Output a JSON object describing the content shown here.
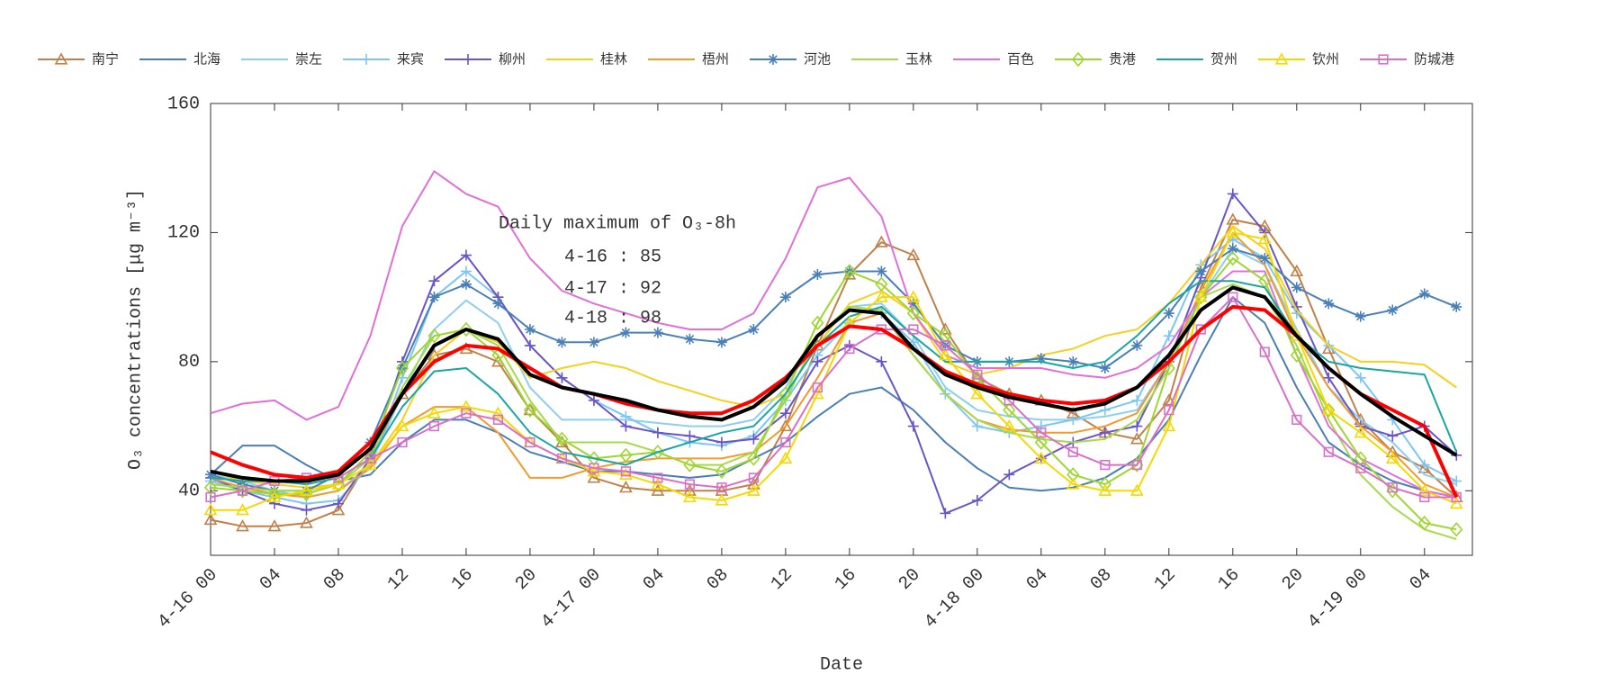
{
  "chart_data": {
    "type": "line",
    "x_label": "Date",
    "y_label": "O₃ concentrations [μg m⁻³]",
    "annotations": [
      "Daily maximum of O₃-8h",
      "4-16 : 85",
      "4-17 : 92",
      "4-18 : 98"
    ],
    "x": [
      0,
      2,
      4,
      6,
      8,
      10,
      12,
      14,
      16,
      18,
      20,
      22,
      24,
      26,
      28,
      30,
      32,
      34,
      36,
      38,
      40,
      42,
      44,
      46,
      48,
      50,
      52,
      54,
      56,
      58,
      60,
      62,
      64,
      66,
      68,
      70,
      72,
      74,
      76,
      78
    ],
    "xlim": [
      0,
      79
    ],
    "xticks": [
      {
        "value": 0,
        "label": "4-16 00"
      },
      {
        "value": 4,
        "label": "04"
      },
      {
        "value": 8,
        "label": "08"
      },
      {
        "value": 12,
        "label": "12"
      },
      {
        "value": 16,
        "label": "16"
      },
      {
        "value": 20,
        "label": "20"
      },
      {
        "value": 24,
        "label": "4-17 00"
      },
      {
        "value": 28,
        "label": "04"
      },
      {
        "value": 32,
        "label": "08"
      },
      {
        "value": 36,
        "label": "12"
      },
      {
        "value": 40,
        "label": "16"
      },
      {
        "value": 44,
        "label": "20"
      },
      {
        "value": 48,
        "label": "4-18 00"
      },
      {
        "value": 52,
        "label": "04"
      },
      {
        "value": 56,
        "label": "08"
      },
      {
        "value": 60,
        "label": "12"
      },
      {
        "value": 64,
        "label": "16"
      },
      {
        "value": 68,
        "label": "20"
      },
      {
        "value": 72,
        "label": "4-19 00"
      },
      {
        "value": 76,
        "label": "04"
      }
    ],
    "ylim": [
      20,
      160
    ],
    "yticks": [
      40,
      80,
      120,
      160
    ],
    "legend": "top",
    "series": [
      {
        "name": "南宁",
        "color": "#c0804a",
        "marker": "triangle",
        "values": [
          31,
          29,
          29,
          30,
          34,
          50,
          70,
          82,
          84,
          80,
          65,
          55,
          44,
          41,
          40,
          40,
          40,
          42,
          60,
          85,
          107,
          117,
          113,
          90,
          75,
          70,
          68,
          64,
          58,
          56,
          68,
          103,
          124,
          122,
          108,
          84,
          62,
          52,
          47,
          38
        ]
      },
      {
        "name": "北海",
        "color": "#4a7fb5",
        "values": [
          45,
          54,
          54,
          48,
          43,
          45,
          55,
          62,
          62,
          58,
          52,
          49,
          46,
          46,
          45,
          44,
          45,
          50,
          55,
          63,
          70,
          72,
          65,
          55,
          47,
          41,
          40,
          41,
          44,
          50,
          62,
          82,
          100,
          92,
          72,
          55,
          48,
          43,
          40,
          38
        ]
      },
      {
        "name": "崇左",
        "color": "#8ccff0",
        "values": [
          45,
          43,
          40,
          38,
          40,
          48,
          70,
          90,
          99,
          92,
          72,
          62,
          62,
          62,
          61,
          60,
          60,
          62,
          72,
          88,
          97,
          98,
          88,
          72,
          65,
          63,
          62,
          62,
          63,
          65,
          80,
          100,
          115,
          110,
          90,
          72,
          62,
          55,
          45,
          42
        ]
      },
      {
        "name": "来宾",
        "color": "#7ec6f2",
        "marker": "plus",
        "values": [
          43,
          40,
          38,
          36,
          37,
          48,
          75,
          100,
          108,
          100,
          85,
          75,
          68,
          63,
          58,
          55,
          54,
          57,
          68,
          82,
          92,
          95,
          86,
          70,
          60,
          58,
          60,
          62,
          65,
          68,
          88,
          110,
          118,
          112,
          95,
          85,
          75,
          62,
          48,
          43
        ]
      },
      {
        "name": "柳州",
        "color": "#6a55c8",
        "marker": "plus",
        "values": [
          44,
          40,
          36,
          34,
          36,
          50,
          80,
          105,
          113,
          100,
          85,
          75,
          68,
          60,
          58,
          57,
          55,
          56,
          64,
          80,
          85,
          80,
          60,
          33,
          37,
          45,
          50,
          55,
          58,
          60,
          80,
          106,
          132,
          120,
          97,
          75,
          60,
          57,
          60,
          51
        ]
      },
      {
        "name": "桂林",
        "color": "#f5d020",
        "values": [
          46,
          43,
          42,
          41,
          42,
          48,
          62,
          82,
          90,
          86,
          75,
          78,
          80,
          78,
          74,
          71,
          68,
          66,
          70,
          85,
          98,
          102,
          95,
          80,
          76,
          78,
          82,
          84,
          88,
          90,
          98,
          110,
          122,
          115,
          96,
          85,
          80,
          80,
          79,
          72
        ]
      },
      {
        "name": "梧州",
        "color": "#f29a2e",
        "values": [
          44,
          41,
          39,
          38,
          40,
          47,
          60,
          66,
          66,
          58,
          44,
          44,
          47,
          49,
          50,
          50,
          50,
          52,
          60,
          75,
          92,
          95,
          82,
          70,
          62,
          59,
          58,
          58,
          60,
          64,
          80,
          102,
          120,
          110,
          88,
          72,
          60,
          52,
          42,
          38
        ]
      },
      {
        "name": "河池",
        "color": "#4a80b8",
        "marker": "star",
        "values": [
          45,
          42,
          40,
          40,
          45,
          55,
          78,
          100,
          104,
          98,
          90,
          86,
          86,
          89,
          89,
          87,
          86,
          90,
          100,
          107,
          108,
          108,
          98,
          85,
          80,
          80,
          81,
          80,
          78,
          85,
          95,
          108,
          115,
          112,
          103,
          98,
          94,
          96,
          101,
          97
        ]
      },
      {
        "name": "玉林",
        "color": "#a8d94a",
        "values": [
          42,
          41,
          40,
          40,
          42,
          50,
          72,
          88,
          90,
          85,
          68,
          55,
          55,
          55,
          52,
          48,
          48,
          52,
          68,
          88,
          97,
          96,
          82,
          70,
          62,
          58,
          56,
          55,
          56,
          62,
          78,
          100,
          104,
          100,
          85,
          62,
          45,
          35,
          28,
          25
        ]
      },
      {
        "name": "百色",
        "color": "#e070d8",
        "values": [
          64,
          67,
          68,
          62,
          66,
          88,
          122,
          139,
          132,
          128,
          112,
          102,
          98,
          95,
          92,
          90,
          90,
          95,
          112,
          134,
          137,
          125,
          95,
          82,
          78,
          78,
          78,
          76,
          75,
          78,
          85,
          100,
          108,
          108,
          82,
          60,
          50,
          45,
          40,
          38
        ]
      },
      {
        "name": "贵港",
        "color": "#9ed630",
        "marker": "diamond",
        "values": [
          41,
          40,
          39,
          39,
          42,
          52,
          78,
          88,
          90,
          82,
          65,
          56,
          50,
          51,
          52,
          48,
          46,
          50,
          70,
          92,
          108,
          104,
          95,
          88,
          75,
          65,
          55,
          45,
          42,
          48,
          78,
          100,
          112,
          105,
          82,
          65,
          50,
          40,
          30,
          28
        ]
      },
      {
        "name": "贺州",
        "color": "#1aa6a0",
        "values": [
          44,
          43,
          43,
          42,
          44,
          50,
          66,
          77,
          78,
          70,
          58,
          52,
          50,
          48,
          52,
          55,
          58,
          60,
          70,
          85,
          94,
          97,
          88,
          80,
          80,
          80,
          80,
          78,
          80,
          88,
          98,
          105,
          105,
          103,
          88,
          80,
          78,
          77,
          76,
          52
        ]
      },
      {
        "name": "钦州",
        "color": "#f5d800",
        "marker": "triangle",
        "values": [
          34,
          34,
          38,
          40,
          42,
          48,
          60,
          64,
          66,
          64,
          55,
          50,
          46,
          45,
          42,
          38,
          37,
          40,
          50,
          70,
          92,
          100,
          100,
          82,
          70,
          60,
          50,
          42,
          40,
          40,
          60,
          100,
          120,
          118,
          88,
          65,
          58,
          50,
          40,
          36
        ]
      },
      {
        "name": "防城港",
        "color": "#d870c8",
        "marker": "square",
        "values": [
          38,
          40,
          43,
          44,
          44,
          50,
          55,
          60,
          64,
          62,
          55,
          50,
          47,
          46,
          44,
          42,
          41,
          44,
          55,
          72,
          84,
          90,
          90,
          85,
          76,
          68,
          58,
          52,
          48,
          48,
          65,
          90,
          100,
          83,
          62,
          52,
          47,
          41,
          38,
          38
        ]
      },
      {
        "color": "#ff0000",
        "line_width": 4,
        "values": [
          52,
          48,
          45,
          44,
          46,
          55,
          70,
          80,
          85,
          84,
          78,
          72,
          70,
          67,
          65,
          64,
          64,
          68,
          75,
          85,
          91,
          90,
          84,
          77,
          73,
          70,
          68,
          67,
          68,
          72,
          80,
          90,
          97,
          96,
          88,
          78,
          70,
          65,
          60,
          38
        ]
      },
      {
        "color": "#000000",
        "line_width": 4,
        "values": [
          46,
          44,
          43,
          43,
          45,
          53,
          70,
          85,
          90,
          87,
          76,
          72,
          70,
          68,
          65,
          63,
          62,
          66,
          74,
          88,
          96,
          95,
          84,
          76,
          72,
          69,
          67,
          65,
          67,
          72,
          82,
          96,
          103,
          100,
          88,
          78,
          70,
          63,
          57,
          51
        ]
      }
    ]
  }
}
